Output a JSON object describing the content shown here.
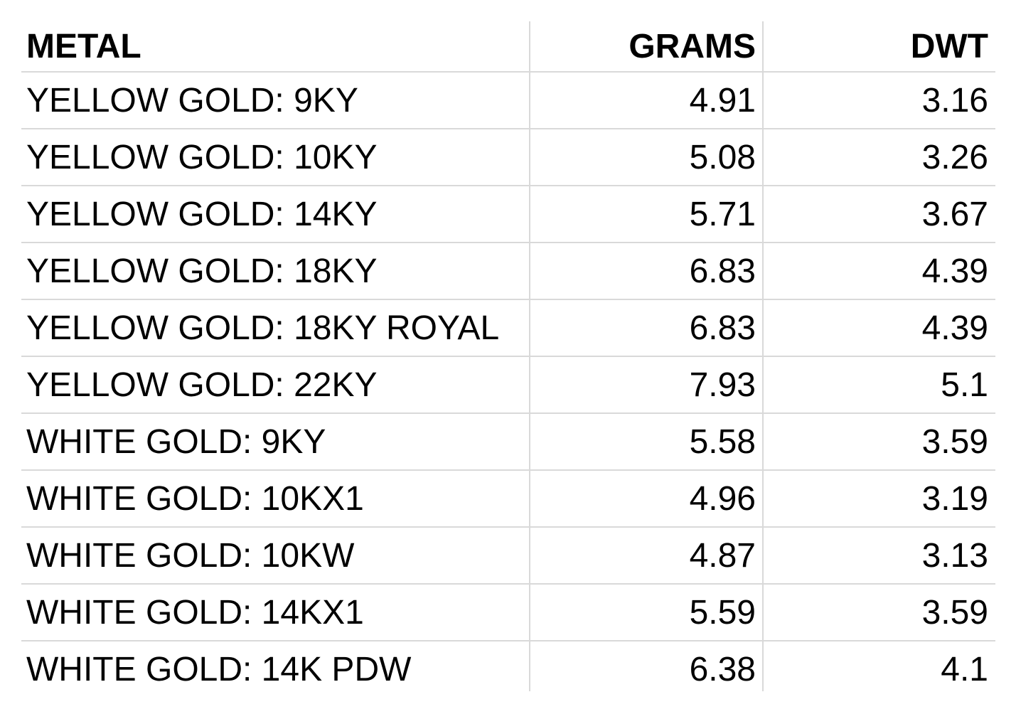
{
  "table": {
    "header": [
      "METAL",
      "GRAMS",
      "DWT"
    ],
    "rows": [
      [
        "YELLOW GOLD: 9KY",
        4.91,
        3.16
      ],
      [
        "YELLOW GOLD: 10KY",
        5.08,
        3.26
      ],
      [
        "YELLOW GOLD: 14KY",
        5.71,
        3.67
      ],
      [
        "YELLOW GOLD: 18KY",
        6.83,
        4.39
      ],
      [
        "YELLOW GOLD: 18KY ROYAL",
        6.83,
        4.39
      ],
      [
        "YELLOW GOLD: 22KY",
        7.93,
        5.1
      ],
      [
        "WHITE GOLD: 9KY",
        5.58,
        3.59
      ],
      [
        "WHITE GOLD: 10KX1",
        4.96,
        3.19
      ],
      [
        "WHITE GOLD: 10KW",
        4.87,
        3.13
      ],
      [
        "WHITE GOLD: 14KX1",
        5.59,
        3.59
      ],
      [
        "WHITE GOLD: 14K PDW",
        6.38,
        4.1
      ]
    ]
  }
}
